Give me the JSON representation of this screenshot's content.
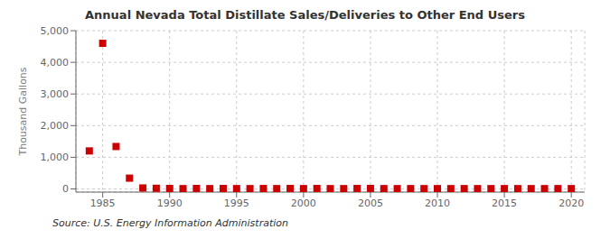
{
  "chart_data": {
    "type": "scatter",
    "title": "Annual Nevada Total Distillate Sales/Deliveries to Other End Users",
    "ylabel": "Thousand Gallons",
    "annotations": [
      "Source: U.S. Energy Information Administration"
    ],
    "x": [
      1984,
      1985,
      1986,
      1987,
      1988,
      1989,
      1990,
      1991,
      1992,
      1993,
      1994,
      1995,
      1996,
      1997,
      1998,
      1999,
      2000,
      2001,
      2002,
      2003,
      2004,
      2005,
      2006,
      2007,
      2008,
      2009,
      2010,
      2011,
      2012,
      2013,
      2014,
      2015,
      2016,
      2017,
      2018,
      2019,
      2020
    ],
    "values": [
      1200,
      4600,
      1340,
      340,
      30,
      20,
      15,
      10,
      15,
      10,
      15,
      10,
      10,
      15,
      10,
      15,
      10,
      15,
      10,
      10,
      15,
      15,
      10,
      10,
      10,
      10,
      10,
      10,
      10,
      10,
      10,
      10,
      10,
      10,
      10,
      10,
      10
    ],
    "color": "#cc0000",
    "marker": "square",
    "xlim": [
      1983,
      2021
    ],
    "xticks": [
      1985,
      1990,
      1995,
      2000,
      2005,
      2010,
      2015,
      2020
    ],
    "ylim": [
      -100,
      5000
    ],
    "yticks": [
      0,
      {
        "value": 1000,
        "label": "1,000"
      },
      {
        "value": 2000,
        "label": "2,000"
      },
      {
        "value": 3000,
        "label": "3,000"
      },
      {
        "value": 4000,
        "label": "4,000"
      },
      {
        "value": 5000,
        "label": "5,000"
      }
    ],
    "grid": true
  }
}
